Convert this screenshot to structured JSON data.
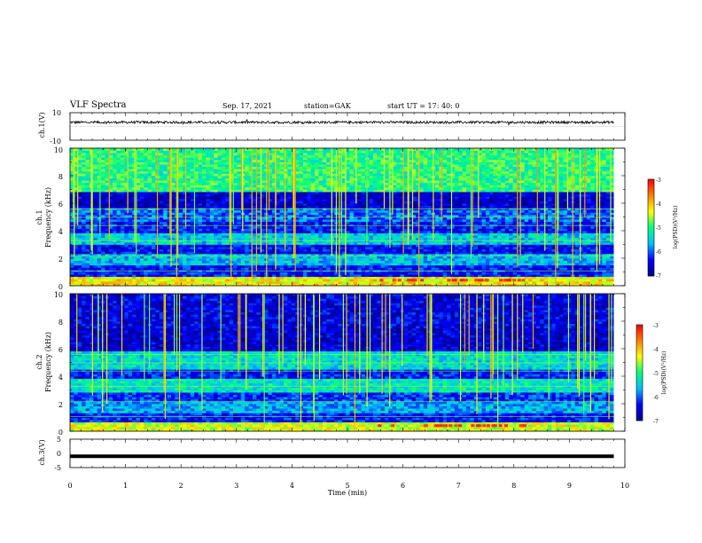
{
  "header": {
    "title": "VLF Spectra",
    "date": "Sep. 17, 2021",
    "station": "station=GAK",
    "start_ut": "start  UT =   17: 40: 0"
  },
  "chart_data": [
    {
      "type": "line",
      "panel": "ch1-waveform",
      "ylabel": "ch.1(V)",
      "ylim": [
        -10,
        10
      ],
      "y_ticks": [
        "10",
        "-10"
      ],
      "x_range_min": [
        0,
        10
      ],
      "data_span_min": [
        0,
        9.8
      ],
      "series": [
        {
          "values_summary": "noisy signal near +3 V, amplitude about ±1 V"
        }
      ]
    },
    {
      "type": "heatmap",
      "panel": "ch1-spectrogram",
      "ylabel_line1": "ch.1",
      "ylabel_line2": "Frequency (kHz)",
      "ylim": [
        0,
        10
      ],
      "y_ticks": [
        "0",
        "2",
        "4",
        "6",
        "8",
        "10"
      ],
      "colorbar": {
        "label": "log(PSD)(V²/Hz)",
        "ticks": [
          "-3",
          "-4",
          "-5",
          "-6",
          "-7"
        ],
        "range": [
          -7,
          -3
        ]
      },
      "bands_khz": [
        {
          "from": 0,
          "to": 0.6,
          "level": -4.2
        },
        {
          "from": 0.6,
          "to": 1.5,
          "level": -6.3
        },
        {
          "from": 1.5,
          "to": 2.3,
          "level": -5.6
        },
        {
          "from": 2.3,
          "to": 3.0,
          "level": -6.4
        },
        {
          "from": 3.0,
          "to": 3.9,
          "level": -5.5
        },
        {
          "from": 3.9,
          "to": 4.6,
          "level": -6.3
        },
        {
          "from": 4.6,
          "to": 5.6,
          "level": -6.0
        },
        {
          "from": 5.6,
          "to": 6.8,
          "level": -6.6
        },
        {
          "from": 6.8,
          "to": 10,
          "level": -5.0
        }
      ]
    },
    {
      "type": "heatmap",
      "panel": "ch2-spectrogram",
      "ylabel_line1": "ch.2",
      "ylabel_line2": "Frequency (kHz)",
      "ylim": [
        0,
        10
      ],
      "y_ticks": [
        "0",
        "2",
        "4",
        "6",
        "8",
        "10"
      ],
      "colorbar": {
        "label": "log(PSD)(V²/Hz)",
        "ticks": [
          "-3",
          "-4",
          "-5",
          "-6",
          "-7"
        ],
        "range": [
          -7,
          -3
        ]
      },
      "bands_khz": [
        {
          "from": 0,
          "to": 0.6,
          "level": -4.4
        },
        {
          "from": 0.6,
          "to": 1.4,
          "level": -6.3
        },
        {
          "from": 1.4,
          "to": 2.1,
          "level": -5.7
        },
        {
          "from": 2.1,
          "to": 2.8,
          "level": -6.2
        },
        {
          "from": 2.8,
          "to": 3.8,
          "level": -5.3
        },
        {
          "from": 3.8,
          "to": 4.5,
          "level": -6.3
        },
        {
          "from": 4.5,
          "to": 5.8,
          "level": -5.4
        },
        {
          "from": 5.8,
          "to": 7.5,
          "level": -6.6
        },
        {
          "from": 7.5,
          "to": 10,
          "level": -6.5
        }
      ]
    },
    {
      "type": "line",
      "panel": "ch3-waveform",
      "ylabel": "ch.3(V)",
      "ylim": [
        -5,
        5
      ],
      "y_ticks": [
        "5",
        "0",
        "-5"
      ],
      "series": [
        {
          "values_summary": "flat signal at -1 V"
        }
      ]
    }
  ],
  "x_axis": {
    "label": "Time (min)",
    "range": [
      0,
      10
    ],
    "ticks": [
      "0",
      "1",
      "2",
      "3",
      "4",
      "5",
      "6",
      "7",
      "8",
      "9",
      "10"
    ]
  },
  "colors": {
    "colormap": [
      "#00008b",
      "#0000ff",
      "#00bfff",
      "#00ff7f",
      "#ffff00",
      "#ff7f00",
      "#ff0000",
      "#ffffff"
    ]
  }
}
